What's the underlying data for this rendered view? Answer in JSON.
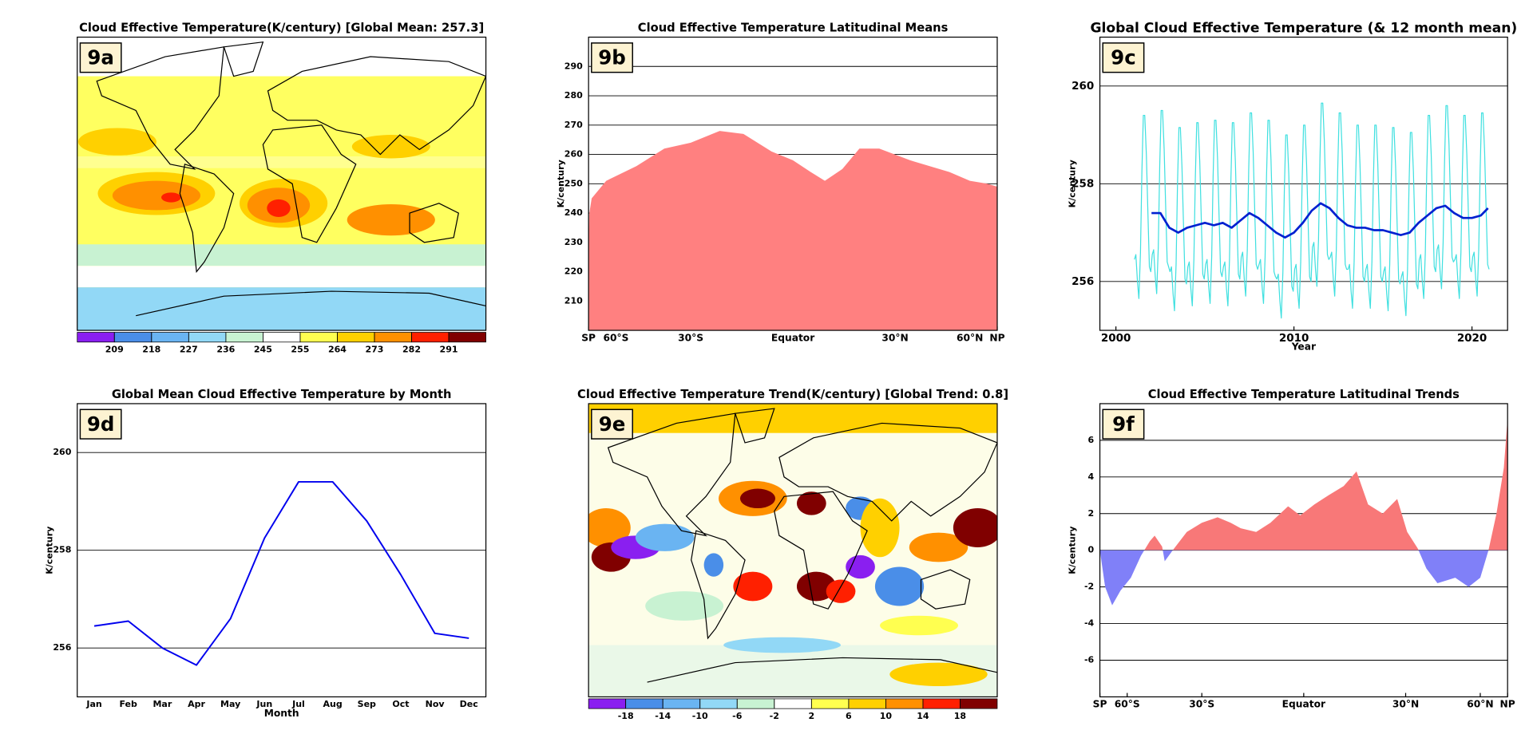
{
  "chart_data": [
    {
      "type": "map",
      "panel_label": "9a",
      "title": "Cloud Effective Temperature(K/century) [Global Mean: 257.3]",
      "colorbar": {
        "colors": [
          "#8a1ff0",
          "#4a8ee8",
          "#6ab4f2",
          "#92d8f6",
          "#c8f2d2",
          "#ffffff",
          "#ffff50",
          "#ffd000",
          "#ff9000",
          "#ff2000",
          "#800000"
        ],
        "ticks": [
          209,
          218,
          227,
          236,
          245,
          255,
          264,
          273,
          282,
          291
        ]
      }
    },
    {
      "type": "area",
      "panel_label": "9b",
      "title": "Cloud Effective Temperature Latitudinal Means",
      "ylabel": "K/century",
      "color": "#ff8080",
      "x_scale": "sine",
      "grid": true,
      "x": [
        -90,
        -85,
        -80,
        -66,
        -50,
        -39,
        -30,
        -21,
        -14,
        -6,
        0,
        5,
        9,
        14,
        19,
        25,
        35,
        50,
        60,
        72,
        90
      ],
      "values": [
        231,
        240,
        245,
        251,
        256,
        262,
        264,
        268,
        267,
        261,
        258,
        254,
        251,
        255,
        262,
        262,
        258,
        254,
        251,
        250,
        249
      ],
      "xlim": [
        -90,
        90
      ],
      "xticks": [
        {
          "value": -90,
          "label": "SP"
        },
        {
          "value": -60,
          "label": "60°S"
        },
        {
          "value": -30,
          "label": "30°S"
        },
        {
          "value": 0,
          "label": "Equator"
        },
        {
          "value": 30,
          "label": "30°N"
        },
        {
          "value": 60,
          "label": "60°N"
        },
        {
          "value": 90,
          "label": "NP"
        }
      ],
      "ylim": [
        200,
        300
      ],
      "yticks": [
        210,
        220,
        230,
        240,
        250,
        260,
        270,
        280,
        290
      ]
    },
    {
      "type": "line",
      "panel_label": "9c",
      "title": "Global Cloud Effective Temperature (& 12 month mean)",
      "ylabel": "K/century",
      "xlabel": "Year",
      "grid": true,
      "xlim": [
        1999.1,
        2022
      ],
      "xticks": [
        2000,
        2010,
        2020
      ],
      "ylim": [
        255,
        261
      ],
      "yticks": [
        256,
        258,
        260
      ],
      "series": [
        {
          "color": "#40e0e0",
          "width": 1,
          "x": [
            2001.04,
            2001.12,
            2001.21,
            2001.29,
            2001.38,
            2001.46,
            2001.54,
            2001.62,
            2001.71,
            2001.79,
            2001.88,
            2001.96,
            2002.04,
            2002.12,
            2002.21,
            2002.29,
            2002.38,
            2002.46,
            2002.54,
            2002.62,
            2002.71,
            2002.79,
            2002.88,
            2002.96,
            2003.04,
            2003.12,
            2003.21,
            2003.29,
            2003.38,
            2003.46,
            2003.54,
            2003.62,
            2003.71,
            2003.79,
            2003.88,
            2003.96,
            2004.04,
            2004.12,
            2004.21,
            2004.29,
            2004.38,
            2004.46,
            2004.54,
            2004.62,
            2004.71,
            2004.79,
            2004.88,
            2004.96,
            2005.04,
            2005.12,
            2005.21,
            2005.29,
            2005.38,
            2005.46,
            2005.54,
            2005.62,
            2005.71,
            2005.79,
            2005.88,
            2005.96,
            2006.04,
            2006.12,
            2006.21,
            2006.29,
            2006.38,
            2006.46,
            2006.54,
            2006.62,
            2006.71,
            2006.79,
            2006.88,
            2006.96,
            2007.04,
            2007.12,
            2007.21,
            2007.29,
            2007.38,
            2007.46,
            2007.54,
            2007.62,
            2007.71,
            2007.79,
            2007.88,
            2007.96,
            2008.04,
            2008.12,
            2008.21,
            2008.29,
            2008.38,
            2008.46,
            2008.54,
            2008.62,
            2008.71,
            2008.79,
            2008.88,
            2008.96,
            2009.04,
            2009.12,
            2009.21,
            2009.29,
            2009.38,
            2009.46,
            2009.54,
            2009.62,
            2009.71,
            2009.79,
            2009.88,
            2009.96,
            2010.04,
            2010.12,
            2010.21,
            2010.29,
            2010.38,
            2010.46,
            2010.54,
            2010.62,
            2010.71,
            2010.79,
            2010.88,
            2010.96,
            2011.04,
            2011.12,
            2011.21,
            2011.29,
            2011.38,
            2011.46,
            2011.54,
            2011.62,
            2011.71,
            2011.79,
            2011.88,
            2011.96,
            2012.04,
            2012.12,
            2012.21,
            2012.29,
            2012.38,
            2012.46,
            2012.54,
            2012.62,
            2012.71,
            2012.79,
            2012.88,
            2012.96,
            2013.04,
            2013.12,
            2013.21,
            2013.29,
            2013.38,
            2013.46,
            2013.54,
            2013.62,
            2013.71,
            2013.79,
            2013.88,
            2013.96,
            2014.04,
            2014.12,
            2014.21,
            2014.29,
            2014.38,
            2014.46,
            2014.54,
            2014.62,
            2014.71,
            2014.79,
            2014.88,
            2014.96,
            2015.04,
            2015.12,
            2015.21,
            2015.29,
            2015.38,
            2015.46,
            2015.54,
            2015.62,
            2015.71,
            2015.79,
            2015.88,
            2015.96,
            2016.04,
            2016.12,
            2016.21,
            2016.29,
            2016.38,
            2016.46,
            2016.54,
            2016.62,
            2016.71,
            2016.79,
            2016.88,
            2016.96,
            2017.04,
            2017.12,
            2017.21,
            2017.29,
            2017.38,
            2017.46,
            2017.54,
            2017.62,
            2017.71,
            2017.79,
            2017.88,
            2017.96,
            2018.04,
            2018.12,
            2018.21,
            2018.29,
            2018.38,
            2018.46,
            2018.54,
            2018.62,
            2018.71,
            2018.79,
            2018.88,
            2018.96,
            2019.04,
            2019.12,
            2019.21,
            2019.29,
            2019.38,
            2019.46,
            2019.54,
            2019.62,
            2019.71,
            2019.79,
            2019.88,
            2019.96,
            2020.04,
            2020.12,
            2020.21,
            2020.29,
            2020.38,
            2020.46,
            2020.54,
            2020.62,
            2020.71,
            2020.79,
            2020.88,
            2020.96
          ],
          "values": [
            256.45,
            256.55,
            256.0,
            255.65,
            256.6,
            258.25,
            259.4,
            259.4,
            258.6,
            257.5,
            256.3,
            256.2,
            256.55,
            256.65,
            256.1,
            255.75,
            256.7,
            258.35,
            259.5,
            259.5,
            258.7,
            257.6,
            256.4,
            256.3,
            256.2,
            256.3,
            255.75,
            255.4,
            256.35,
            258.0,
            259.15,
            259.15,
            258.35,
            257.25,
            256.05,
            255.95,
            256.3,
            256.4,
            255.85,
            255.5,
            256.45,
            258.1,
            259.25,
            259.25,
            258.45,
            257.35,
            256.15,
            256.05,
            256.35,
            256.45,
            255.9,
            255.55,
            256.5,
            258.15,
            259.3,
            259.3,
            258.5,
            257.4,
            256.2,
            256.1,
            256.3,
            256.4,
            255.85,
            255.5,
            256.45,
            258.1,
            259.25,
            259.25,
            258.45,
            257.35,
            256.15,
            256.05,
            256.5,
            256.6,
            256.05,
            255.7,
            256.65,
            258.3,
            259.45,
            259.45,
            258.65,
            257.55,
            256.35,
            256.25,
            256.35,
            256.45,
            255.9,
            255.55,
            256.5,
            258.15,
            259.3,
            259.3,
            258.5,
            257.4,
            256.2,
            256.1,
            256.05,
            256.15,
            255.6,
            255.25,
            256.2,
            257.85,
            259.0,
            259.0,
            258.2,
            257.1,
            255.9,
            255.8,
            256.25,
            256.35,
            255.8,
            255.45,
            256.4,
            258.05,
            259.2,
            259.2,
            258.4,
            257.3,
            256.1,
            256.0,
            256.7,
            256.8,
            256.25,
            255.9,
            256.85,
            258.5,
            259.65,
            259.65,
            258.85,
            257.75,
            256.55,
            256.45,
            256.5,
            256.6,
            256.05,
            255.7,
            256.65,
            258.3,
            259.45,
            259.45,
            258.65,
            257.55,
            256.35,
            256.25,
            256.25,
            256.35,
            255.8,
            255.45,
            256.4,
            258.05,
            259.2,
            259.2,
            258.4,
            257.3,
            256.1,
            256.0,
            256.25,
            256.35,
            255.8,
            255.45,
            256.4,
            258.05,
            259.2,
            259.2,
            258.4,
            257.3,
            256.1,
            256.0,
            256.2,
            256.3,
            255.75,
            255.4,
            256.35,
            258.0,
            259.15,
            259.15,
            258.35,
            257.25,
            256.05,
            255.95,
            256.1,
            256.2,
            255.65,
            255.3,
            256.25,
            257.9,
            259.05,
            259.05,
            258.25,
            257.15,
            255.95,
            255.85,
            256.45,
            256.55,
            256.0,
            255.65,
            256.6,
            258.25,
            259.4,
            259.4,
            258.6,
            257.5,
            256.3,
            256.2,
            256.65,
            256.75,
            256.2,
            255.85,
            256.8,
            258.45,
            259.6,
            259.6,
            258.8,
            257.7,
            256.5,
            256.4,
            256.45,
            256.55,
            256.0,
            255.65,
            256.6,
            258.25,
            259.4,
            259.4,
            258.6,
            257.5,
            256.3,
            256.2,
            256.5,
            256.6,
            256.05,
            255.7,
            256.65,
            258.3,
            259.45,
            259.45,
            258.65,
            257.55,
            256.35,
            256.25
          ]
        },
        {
          "color": "#0020d0",
          "width": 2.2,
          "x": [
            2002.0,
            2002.5,
            2003.0,
            2003.5,
            2004.0,
            2004.5,
            2005.0,
            2005.5,
            2006.0,
            2006.5,
            2007.0,
            2007.5,
            2008.0,
            2008.5,
            2009.0,
            2009.5,
            2010.0,
            2010.5,
            2011.0,
            2011.5,
            2012.0,
            2012.5,
            2013.0,
            2013.5,
            2014.0,
            2014.5,
            2015.0,
            2015.5,
            2016.0,
            2016.5,
            2017.0,
            2017.5,
            2018.0,
            2018.5,
            2019.0,
            2019.5,
            2020.0,
            2020.5,
            2020.9
          ],
          "values": [
            257.4,
            257.4,
            257.1,
            257.0,
            257.1,
            257.15,
            257.2,
            257.15,
            257.2,
            257.1,
            257.25,
            257.4,
            257.3,
            257.15,
            257.0,
            256.9,
            257.0,
            257.2,
            257.45,
            257.6,
            257.5,
            257.3,
            257.15,
            257.1,
            257.1,
            257.05,
            257.05,
            257.0,
            256.95,
            257.0,
            257.2,
            257.35,
            257.5,
            257.55,
            257.4,
            257.3,
            257.3,
            257.35,
            257.5
          ]
        }
      ]
    },
    {
      "type": "line",
      "panel_label": "9d",
      "title": "Global Mean Cloud Effective Temperature by Month",
      "ylabel": "K/century",
      "xlabel": "Month",
      "grid": true,
      "categories": [
        "Jan",
        "Feb",
        "Mar",
        "Apr",
        "May",
        "Jun",
        "Jul",
        "Aug",
        "Sep",
        "Oct",
        "Nov",
        "Dec"
      ],
      "ylim": [
        255,
        261
      ],
      "yticks": [
        256,
        258,
        260
      ],
      "series": [
        {
          "color": "#0000ee",
          "width": 1.6,
          "values": [
            256.45,
            256.55,
            256.0,
            255.65,
            256.6,
            258.25,
            259.4,
            259.4,
            258.6,
            257.5,
            256.3,
            256.2
          ]
        }
      ]
    },
    {
      "type": "map",
      "panel_label": "9e",
      "title": "Cloud Effective Temperature Trend(K/century)  [Global Trend: 0.8]",
      "colorbar": {
        "colors": [
          "#8a1ff0",
          "#4a8ee8",
          "#6ab4f2",
          "#92d8f6",
          "#c8f2d2",
          "#ffffff",
          "#ffff50",
          "#ffd000",
          "#ff9000",
          "#ff2000",
          "#800000"
        ],
        "ticks": [
          -18,
          -14,
          -10,
          -6,
          -2,
          2,
          6,
          10,
          14,
          18
        ]
      }
    },
    {
      "type": "area",
      "panel_label": "9f",
      "title": "Cloud Effective Temperature Latitudinal Trends",
      "ylabel": "K/century",
      "color": "#f87878",
      "neg_color": "#8080f8",
      "x_scale": "sine",
      "grid": true,
      "x": [
        -90,
        -77,
        -70,
        -64,
        -58,
        -53,
        -49,
        -47,
        -44,
        -43,
        -40,
        -35,
        -30,
        -25,
        -21,
        -18,
        -13.5,
        -9.4,
        -4.4,
        -1,
        3,
        7,
        11.3,
        15,
        18.4,
        22.8,
        27.3,
        30.5,
        34,
        37,
        41,
        48,
        54,
        60,
        65,
        71,
        79,
        90
      ],
      "values": [
        0,
        -2,
        -3,
        -2.2,
        -1.5,
        -0.3,
        0.5,
        0.8,
        0.2,
        -0.6,
        0,
        1.0,
        1.5,
        1.8,
        1.5,
        1.2,
        1.0,
        1.5,
        2.4,
        1.9,
        2.5,
        3.0,
        3.5,
        4.3,
        2.5,
        2.0,
        2.8,
        1.0,
        0.1,
        -1.0,
        -1.8,
        -1.5,
        -2.0,
        -1.5,
        0,
        2,
        4.5,
        7.2
      ],
      "xlim": [
        -90,
        90
      ],
      "xticks": [
        {
          "value": -90,
          "label": "SP"
        },
        {
          "value": -60,
          "label": "60°S"
        },
        {
          "value": -30,
          "label": "30°S"
        },
        {
          "value": 0,
          "label": "Equator"
        },
        {
          "value": 30,
          "label": "30°N"
        },
        {
          "value": 60,
          "label": "60°N"
        },
        {
          "value": 90,
          "label": "NP"
        }
      ],
      "ylim": [
        -8,
        8
      ],
      "yticks": [
        -6,
        -4,
        -2,
        0,
        2,
        4,
        6
      ]
    }
  ]
}
